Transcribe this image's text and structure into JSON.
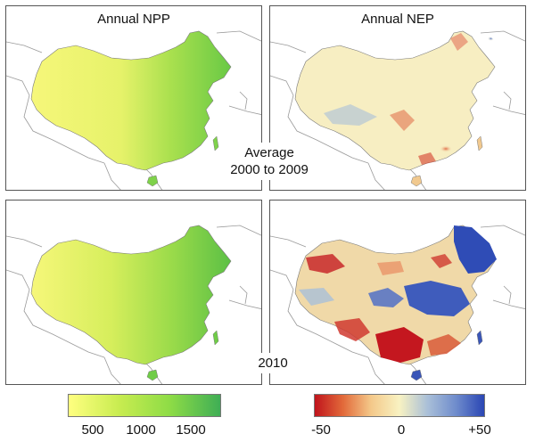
{
  "panels": {
    "npp_title": "Annual NPP",
    "nep_title": "Annual NEP"
  },
  "period_labels": {
    "average_line1": "Average",
    "average_line2": "2000 to 2009",
    "year": "2010"
  },
  "colorbars": {
    "npp": {
      "ticks": [
        "500",
        "1000",
        "1500"
      ],
      "colors": [
        "#ffff80",
        "#c8ec50",
        "#8edc46",
        "#3fae55"
      ]
    },
    "nep": {
      "ticks": [
        "-50",
        "0",
        "+50"
      ],
      "colors": [
        "#c0141c",
        "#e26a3a",
        "#f4c98a",
        "#f8f2c2",
        "#a9bfd8",
        "#6f8ccc",
        "#2a46b4"
      ]
    }
  },
  "map_colors": {
    "npp_dry": "#f6f77a",
    "npp_mid": "#cdec55",
    "npp_wet": "#69c945",
    "nep_neutral": "#f7eec2",
    "nep_neg": "#d43e2c",
    "nep_pos": "#3a56b8"
  }
}
